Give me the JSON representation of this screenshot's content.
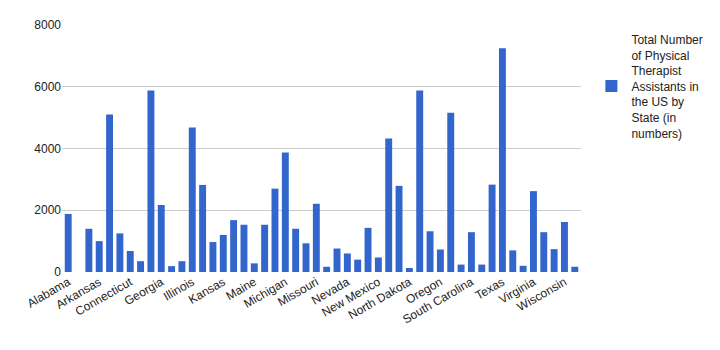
{
  "chart_data": {
    "type": "bar",
    "categories": [
      "Alabama",
      null,
      null,
      "Arkansas",
      null,
      null,
      "Connecticut",
      null,
      null,
      "Georgia",
      null,
      null,
      "Illinois",
      null,
      null,
      "Kansas",
      null,
      null,
      "Maine",
      null,
      null,
      "Michigan",
      null,
      null,
      "Missouri",
      null,
      null,
      "Nevada",
      null,
      null,
      "New Mexico",
      null,
      null,
      "North Dakota",
      null,
      null,
      "Oregon",
      null,
      null,
      "South Carolina",
      null,
      null,
      "Texas",
      null,
      null,
      "Virginia",
      null,
      null,
      "Wisconsin",
      null
    ],
    "series": [
      {
        "name": "Total Number of Physical Therapist Assistants in the US by State (in numbers)",
        "color": "#3366cc",
        "values": [
          1880,
          0,
          1400,
          1000,
          5100,
          1250,
          680,
          350,
          5880,
          2170,
          190,
          350,
          4680,
          2820,
          970,
          1200,
          1680,
          1530,
          280,
          1530,
          2700,
          3870,
          1400,
          930,
          2210,
          170,
          760,
          600,
          400,
          1430,
          470,
          4320,
          2790,
          130,
          5880,
          1320,
          730,
          5160,
          240,
          1290,
          240,
          2830,
          7250,
          700,
          200,
          2620,
          1290,
          740,
          1620,
          170
        ]
      }
    ],
    "ylim": [
      0,
      8000
    ],
    "yticks": [
      0,
      2000,
      4000,
      6000,
      8000
    ],
    "grid": true,
    "legend": "right"
  }
}
